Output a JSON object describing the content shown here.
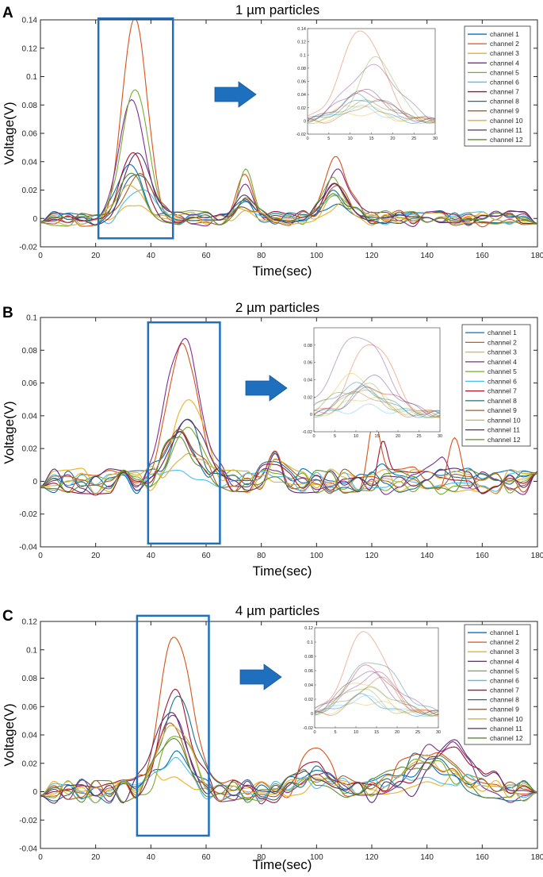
{
  "chart_data": [
    {
      "type": "line",
      "panel_letter": "A",
      "title": "1 µm particles",
      "xlabel": "Time(sec)",
      "ylabel": "Voltage(V)",
      "xlim": [
        0,
        180
      ],
      "ylim": [
        -0.02,
        0.14
      ],
      "xticks": [
        0,
        20,
        40,
        60,
        80,
        100,
        120,
        140,
        160,
        180
      ],
      "yticks": [
        -0.02,
        0,
        0.02,
        0.04,
        0.06,
        0.08,
        0.1,
        0.12,
        0.14
      ],
      "yticklabels": [
        "-0.02",
        "0",
        "0.02",
        "0.04",
        "0.06",
        "0.08",
        "0.1",
        "0.12",
        "0.14"
      ],
      "highlight_window_sec": [
        21,
        48
      ],
      "highlight_ylim": [
        -0.014,
        0.141
      ],
      "peak_time_sec": 34.5,
      "peak_width_sec": 4.5,
      "series": [
        {
          "name": "channel 1",
          "color": "#0072BD",
          "peak": 0.038,
          "noise": 0.005,
          "bumps": [
            [
              74,
              0.008,
              3
            ],
            [
              107,
              0.012,
              4
            ]
          ]
        },
        {
          "name": "channel 2",
          "color": "#D95319",
          "peak": 0.138,
          "noise": 0.006,
          "bumps": [
            [
              74,
              0.035,
              3
            ],
            [
              107,
              0.048,
              4
            ]
          ]
        },
        {
          "name": "channel 3",
          "color": "#EDB120",
          "peak": 0.012,
          "noise": 0.005,
          "bumps": [
            [
              74,
              0.006,
              3
            ],
            [
              107,
              0.01,
              4
            ]
          ]
        },
        {
          "name": "channel 4",
          "color": "#7E2F8E",
          "peak": 0.082,
          "noise": 0.006,
          "bumps": [
            [
              74,
              0.022,
              3
            ],
            [
              107,
              0.038,
              4
            ]
          ]
        },
        {
          "name": "channel 5",
          "color": "#77AC30",
          "peak": 0.096,
          "noise": 0.006,
          "bumps": [
            [
              74,
              0.03,
              3
            ],
            [
              107,
              0.025,
              4
            ]
          ]
        },
        {
          "name": "channel 6",
          "color": "#4DBEEE",
          "peak": 0.02,
          "noise": 0.005,
          "bumps": [
            [
              74,
              0.01,
              3
            ],
            [
              107,
              0.012,
              4
            ]
          ]
        },
        {
          "name": "channel 7",
          "color": "#A2142F",
          "peak": 0.043,
          "noise": 0.005,
          "bumps": [
            [
              74,
              0.014,
              3
            ],
            [
              107,
              0.022,
              4
            ]
          ]
        },
        {
          "name": "channel 8",
          "color": "#1F6F8B",
          "peak": 0.033,
          "noise": 0.005,
          "bumps": [
            [
              74,
              0.01,
              3
            ],
            [
              107,
              0.018,
              4
            ]
          ]
        },
        {
          "name": "channel 9",
          "color": "#B35C1E",
          "peak": 0.03,
          "noise": 0.005,
          "bumps": [
            [
              74,
              0.012,
              3
            ],
            [
              107,
              0.02,
              4
            ]
          ]
        },
        {
          "name": "channel 10",
          "color": "#D6B23A",
          "peak": 0.025,
          "noise": 0.005,
          "bumps": [
            [
              74,
              0.008,
              3
            ],
            [
              107,
              0.015,
              4
            ]
          ]
        },
        {
          "name": "channel 11",
          "color": "#5B2C6F",
          "peak": 0.046,
          "noise": 0.005,
          "bumps": [
            [
              74,
              0.016,
              3
            ],
            [
              107,
              0.024,
              4
            ]
          ]
        },
        {
          "name": "channel 12",
          "color": "#5E8C31",
          "peak": 0.028,
          "noise": 0.005,
          "bumps": [
            [
              74,
              0.012,
              3
            ],
            [
              107,
              0.018,
              4
            ]
          ]
        }
      ],
      "inset": {
        "xlim": [
          0,
          30
        ],
        "ylim": [
          -0.02,
          0.14
        ],
        "xticks": [
          0,
          5,
          10,
          15,
          20,
          25,
          30
        ],
        "yticks": [
          -0.02,
          0,
          0.02,
          0.04,
          0.06,
          0.08,
          0.1,
          0.12,
          0.14
        ],
        "yticklabels": [
          "-0.02",
          "0",
          "0.02",
          "0.04",
          "0.06",
          "0.08",
          "0.1",
          "0.12",
          "0.14"
        ],
        "peak_time_sec": 14
      }
    },
    {
      "type": "line",
      "panel_letter": "B",
      "title": "2 µm particles",
      "xlabel": "Time(sec)",
      "ylabel": "Voltage(V)",
      "xlim": [
        0,
        180
      ],
      "ylim": [
        -0.04,
        0.1
      ],
      "xticks": [
        0,
        20,
        40,
        60,
        80,
        100,
        120,
        140,
        160,
        180
      ],
      "yticks": [
        -0.04,
        -0.02,
        0,
        0.02,
        0.04,
        0.06,
        0.08,
        0.1
      ],
      "yticklabels": [
        "-0.04",
        "-0.02",
        "0",
        "0.02",
        "0.04",
        "0.06",
        "0.08",
        "0.1"
      ],
      "highlight_window_sec": [
        39,
        65
      ],
      "highlight_ylim": [
        -0.038,
        0.097
      ],
      "peak_time_sec": 52,
      "peak_width_sec": 5.5,
      "series": [
        {
          "name": "channel 1",
          "color": "#0072BD",
          "peak": 0.03,
          "noise": 0.008,
          "bumps": [
            [
              85,
              0.012,
              3
            ],
            [
              121,
              0.012,
              3
            ]
          ]
        },
        {
          "name": "channel 2",
          "color": "#D95319",
          "peak": 0.084,
          "noise": 0.009,
          "bumps": [
            [
              85,
              0.01,
              3
            ],
            [
              121,
              0.03,
              2
            ],
            [
              150,
              0.018,
              3
            ]
          ]
        },
        {
          "name": "channel 3",
          "color": "#EDB120",
          "peak": 0.044,
          "noise": 0.008,
          "bumps": [
            [
              85,
              0.006,
              3
            ]
          ]
        },
        {
          "name": "channel 4",
          "color": "#7E2F8E",
          "peak": 0.092,
          "noise": 0.009,
          "bumps": [
            [
              85,
              0.012,
              3
            ],
            [
              146,
              0.012,
              3
            ]
          ]
        },
        {
          "name": "channel 5",
          "color": "#77AC30",
          "peak": 0.035,
          "noise": 0.008,
          "bumps": [
            [
              85,
              0.008,
              3
            ]
          ]
        },
        {
          "name": "channel 6",
          "color": "#4DBEEE",
          "peak": 0.008,
          "noise": 0.007,
          "bumps": [
            [
              85,
              0.004,
              3
            ]
          ]
        },
        {
          "name": "channel 7",
          "color": "#A2142F",
          "peak": 0.03,
          "noise": 0.008,
          "bumps": [
            [
              85,
              0.01,
              3
            ],
            [
              124,
              0.028,
              2
            ]
          ]
        },
        {
          "name": "channel 8",
          "color": "#1F6F8B",
          "peak": 0.033,
          "noise": 0.008,
          "bumps": [
            [
              85,
              0.01,
              3
            ]
          ]
        },
        {
          "name": "channel 9",
          "color": "#B35C1E",
          "peak": 0.025,
          "noise": 0.008,
          "bumps": [
            [
              85,
              0.01,
              3
            ]
          ]
        },
        {
          "name": "channel 10",
          "color": "#D6B23A",
          "peak": 0.02,
          "noise": 0.008,
          "bumps": [
            [
              85,
              0.008,
              3
            ]
          ]
        },
        {
          "name": "channel 11",
          "color": "#5B2C6F",
          "peak": 0.042,
          "noise": 0.008,
          "bumps": [
            [
              85,
              0.01,
              3
            ]
          ]
        },
        {
          "name": "channel 12",
          "color": "#5E8C31",
          "peak": 0.028,
          "noise": 0.008,
          "bumps": [
            [
              85,
              0.01,
              3
            ]
          ]
        }
      ],
      "inset": {
        "xlim": [
          0,
          30
        ],
        "ylim": [
          -0.02,
          0.1
        ],
        "xticks": [
          0,
          5,
          10,
          15,
          20,
          25,
          30
        ],
        "yticks": [
          -0.02,
          0,
          0.02,
          0.04,
          0.06,
          0.08
        ],
        "yticklabels": [
          "-0.02",
          "0",
          "0.02",
          "0.04",
          "0.06",
          "0.08"
        ],
        "peak_time_sec": 12
      }
    },
    {
      "type": "line",
      "panel_letter": "C",
      "title": "4 µm particles",
      "xlabel": "Time(sec)",
      "ylabel": "Voltage(V)",
      "xlim": [
        0,
        180
      ],
      "ylim": [
        -0.04,
        0.12
      ],
      "xticks": [
        0,
        20,
        40,
        60,
        80,
        100,
        120,
        140,
        160,
        180
      ],
      "yticks": [
        -0.04,
        -0.02,
        0,
        0.02,
        0.04,
        0.06,
        0.08,
        0.1,
        0.12
      ],
      "yticklabels": [
        "-0.04",
        "-0.02",
        "0",
        "0.02",
        "0.04",
        "0.06",
        "0.08",
        "0.1",
        "0.12"
      ],
      "highlight_window_sec": [
        35,
        61
      ],
      "highlight_ylim": [
        -0.031,
        0.124
      ],
      "peak_time_sec": 48,
      "peak_width_sec": 5.5,
      "series": [
        {
          "name": "channel 1",
          "color": "#0072BD",
          "peak": 0.024,
          "noise": 0.008,
          "bumps": [
            [
              100,
              0.01,
              6
            ],
            [
              140,
              0.015,
              10
            ]
          ]
        },
        {
          "name": "channel 2",
          "color": "#D95319",
          "peak": 0.115,
          "noise": 0.009,
          "bumps": [
            [
              100,
              0.028,
              5
            ],
            [
              140,
              0.025,
              10
            ]
          ]
        },
        {
          "name": "channel 3",
          "color": "#EDB120",
          "peak": 0.016,
          "noise": 0.008,
          "bumps": [
            [
              100,
              0.008,
              6
            ],
            [
              140,
              0.012,
              10
            ]
          ]
        },
        {
          "name": "channel 4",
          "color": "#7E2F8E",
          "peak": 0.055,
          "noise": 0.009,
          "bumps": [
            [
              100,
              0.015,
              6
            ],
            [
              145,
              0.03,
              10
            ]
          ]
        },
        {
          "name": "channel 5",
          "color": "#77AC30",
          "peak": 0.037,
          "noise": 0.008,
          "bumps": [
            [
              100,
              0.012,
              6
            ],
            [
              140,
              0.02,
              10
            ]
          ]
        },
        {
          "name": "channel 6",
          "color": "#4DBEEE",
          "peak": 0.022,
          "noise": 0.008,
          "bumps": [
            [
              100,
              0.01,
              6
            ],
            [
              140,
              0.015,
              10
            ]
          ]
        },
        {
          "name": "channel 7",
          "color": "#A2142F",
          "peak": 0.065,
          "noise": 0.009,
          "bumps": [
            [
              100,
              0.015,
              6
            ],
            [
              150,
              0.035,
              8
            ]
          ]
        },
        {
          "name": "channel 8",
          "color": "#1F6F8B",
          "peak": 0.074,
          "noise": 0.009,
          "bumps": [
            [
              100,
              0.015,
              6
            ],
            [
              140,
              0.022,
              10
            ]
          ]
        },
        {
          "name": "channel 9",
          "color": "#B35C1E",
          "peak": 0.05,
          "noise": 0.008,
          "bumps": [
            [
              100,
              0.012,
              6
            ],
            [
              140,
              0.025,
              10
            ]
          ]
        },
        {
          "name": "channel 10",
          "color": "#D6B23A",
          "peak": 0.045,
          "noise": 0.008,
          "bumps": [
            [
              100,
              0.012,
              6
            ],
            [
              140,
              0.02,
              10
            ]
          ]
        },
        {
          "name": "channel 11",
          "color": "#5B2C6F",
          "peak": 0.058,
          "noise": 0.009,
          "bumps": [
            [
              100,
              0.014,
              6
            ],
            [
              150,
              0.032,
              8
            ]
          ]
        },
        {
          "name": "channel 12",
          "color": "#5E8C31",
          "peak": 0.033,
          "noise": 0.008,
          "bumps": [
            [
              100,
              0.012,
              6
            ],
            [
              140,
              0.02,
              10
            ]
          ]
        }
      ],
      "inset": {
        "xlim": [
          0,
          30
        ],
        "ylim": [
          -0.02,
          0.12
        ],
        "xticks": [
          0,
          5,
          10,
          15,
          20,
          25,
          30
        ],
        "yticks": [
          -0.02,
          0,
          0.02,
          0.04,
          0.06,
          0.08,
          0.1,
          0.12
        ],
        "yticklabels": [
          "-0.02",
          "0",
          "0.02",
          "0.04",
          "0.06",
          "0.08",
          "0.1",
          "0.12"
        ],
        "peak_time_sec": 13
      }
    }
  ],
  "colors": {
    "highlight_box": "#1F6FBF",
    "arrow": "#1F6FBF",
    "axis": "#262626"
  }
}
